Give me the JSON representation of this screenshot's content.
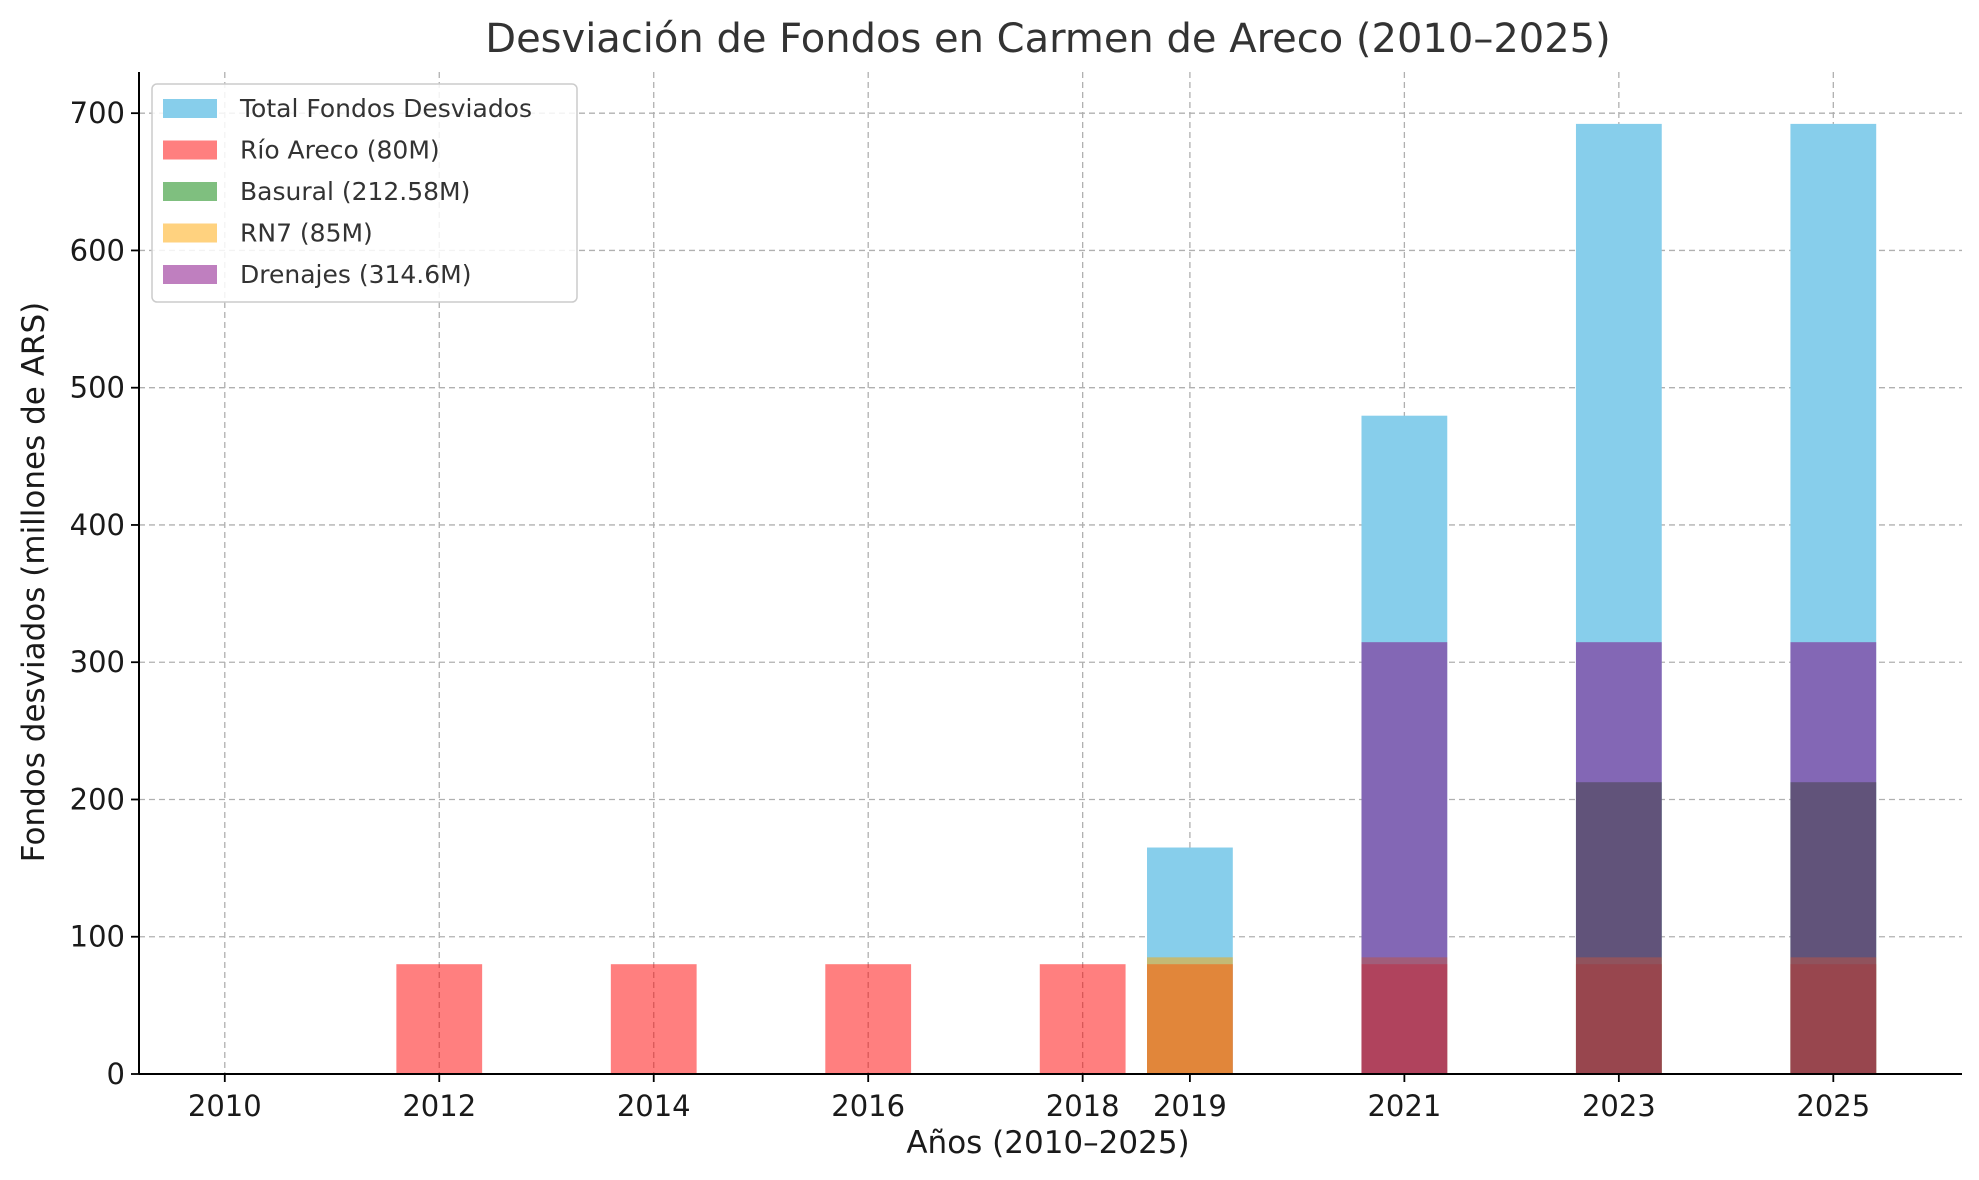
{
  "chart_data": {
    "type": "bar",
    "title": "Desviación de Fondos en Carmen de Areco (2010–2025)",
    "xlabel": "Años (2010–2025)",
    "ylabel": "Fondos desviados (millones de ARS)",
    "ylim": [
      0,
      730
    ],
    "yticks": [
      0,
      100,
      200,
      300,
      400,
      500,
      600,
      700
    ],
    "xticks": [
      2010,
      2012,
      2014,
      2016,
      2018,
      2019,
      2021,
      2023,
      2025
    ],
    "xlim": [
      2009.2,
      2026.2
    ],
    "grid": true,
    "legend_position": "top-left",
    "bar_width_years": 0.8,
    "series": [
      {
        "name": "Total Fondos Desviados",
        "color": "#87CEEB",
        "opacity": 1,
        "points": [
          {
            "x": 2019,
            "y": 165
          },
          {
            "x": 2021,
            "y": 479.6
          },
          {
            "x": 2023,
            "y": 692.2
          },
          {
            "x": 2025,
            "y": 692.2
          }
        ]
      },
      {
        "name": "Río Areco (80M)",
        "color": "#FF0000",
        "opacity": 0.5,
        "points": [
          {
            "x": 2012,
            "y": 80
          },
          {
            "x": 2014,
            "y": 80
          },
          {
            "x": 2016,
            "y": 80
          },
          {
            "x": 2018,
            "y": 80
          },
          {
            "x": 2019,
            "y": 80
          },
          {
            "x": 2021,
            "y": 80
          },
          {
            "x": 2023,
            "y": 80
          },
          {
            "x": 2025,
            "y": 80
          }
        ]
      },
      {
        "name": "Basural (212.58M)",
        "color": "#008000",
        "opacity": 0.5,
        "points": [
          {
            "x": 2023,
            "y": 212.58
          },
          {
            "x": 2025,
            "y": 212.58
          }
        ]
      },
      {
        "name": "RN7 (85M)",
        "color": "#FFA500",
        "opacity": 0.5,
        "points": [
          {
            "x": 2019,
            "y": 85
          },
          {
            "x": 2021,
            "y": 85
          },
          {
            "x": 2023,
            "y": 85
          },
          {
            "x": 2025,
            "y": 85
          }
        ]
      },
      {
        "name": "Drenajes (314.6M)",
        "color": "#800080",
        "opacity": 0.5,
        "points": [
          {
            "x": 2021,
            "y": 314.6
          },
          {
            "x": 2023,
            "y": 314.6
          },
          {
            "x": 2025,
            "y": 314.6
          }
        ]
      }
    ]
  }
}
